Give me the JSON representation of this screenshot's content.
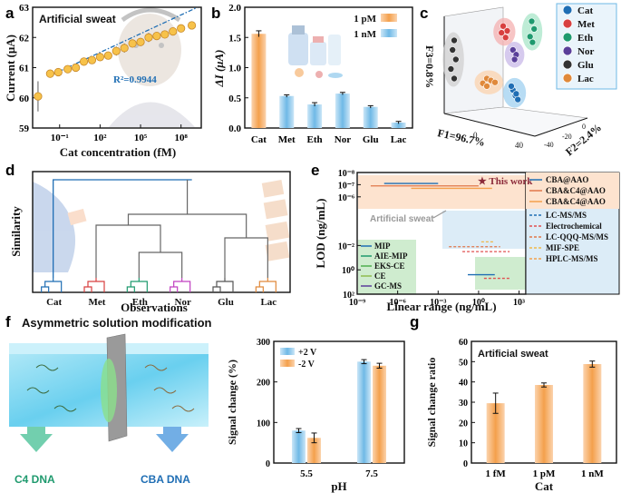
{
  "colors": {
    "orange": "#f4a04c",
    "orange_light": "#fbd3ad",
    "blue": "#6fb9e6",
    "blue_light": "#cbe6f7",
    "dark_blue": "#1f6eb4",
    "axis": "#111111",
    "annot_red": "#8b2a3a",
    "green_box": "#cfeccf",
    "orange_box": "#fde3cf",
    "blue_box": "#dcecf7"
  },
  "panel_labels": [
    "a",
    "b",
    "c",
    "d",
    "e",
    "f",
    "g"
  ],
  "chart_data": [
    {
      "id": "a",
      "type": "scatter",
      "title": "Artificial sweat",
      "xlabel": "Cat concentration (fM)",
      "ylabel": "Current (μA)",
      "x_log": true,
      "xlim_log10": [
        -3,
        9.5
      ],
      "ylim": [
        59,
        63
      ],
      "x_ticks": [
        {
          "e": -1,
          "label": "10⁻¹"
        },
        {
          "e": 2,
          "label": "10²"
        },
        {
          "e": 5,
          "label": "10⁵"
        },
        {
          "e": 8,
          "label": "10⁸"
        }
      ],
      "y_ticks": [
        59,
        60,
        61,
        62,
        63
      ],
      "annotation": "R²=0.9944",
      "fit": {
        "slope": 0.207,
        "intercept": 61.09
      },
      "points_log10x": [
        -2.6,
        -1.7,
        -1.1,
        -0.4,
        0.2,
        0.8,
        1.4,
        2.0,
        2.6,
        3.2,
        3.8,
        4.4,
        5.0,
        5.6,
        6.2,
        6.8,
        7.4,
        8.0,
        8.8
      ],
      "points_y": [
        60.05,
        60.8,
        60.85,
        60.95,
        61.0,
        61.2,
        61.25,
        61.35,
        61.4,
        61.55,
        61.65,
        61.8,
        61.85,
        62.0,
        62.05,
        62.1,
        62.2,
        62.3,
        62.4
      ],
      "errors": [
        0.5,
        0.12,
        0.08,
        0.1,
        0.1,
        0.12,
        0.1,
        0.1,
        0.12,
        0.15,
        0.15,
        0.12,
        0.12,
        0.15,
        0.1,
        0.1,
        0.1,
        0.1,
        0.08
      ]
    },
    {
      "id": "b",
      "type": "bar",
      "xlabel": "",
      "ylabel": "ΔI (μA)",
      "ylim": [
        0,
        2.0
      ],
      "y_ticks": [
        0.0,
        0.5,
        1.0,
        1.5,
        2.0
      ],
      "y_tick_labels": [
        "0.0",
        "0.5",
        "1.0",
        "1.5",
        "2.0"
      ],
      "categories": [
        "Cat",
        "Met",
        "Eth",
        "Nor",
        "Glu",
        "Lac"
      ],
      "values": [
        1.56,
        0.53,
        0.39,
        0.57,
        0.35,
        0.09
      ],
      "errors": [
        0.05,
        0.02,
        0.03,
        0.02,
        0.02,
        0.02
      ],
      "legend": [
        {
          "name": "1 pM"
        },
        {
          "name": "1 nM"
        }
      ]
    },
    {
      "id": "c",
      "type": "scatter",
      "xlabel": "F1=96.7%",
      "ylabel": "F3=0.8%",
      "zlabel": "F2=2.4%",
      "x_ticks": [
        "0",
        "40"
      ],
      "z_ticks": [
        "-40",
        "-20",
        "0"
      ],
      "legend": [
        {
          "name": "Cat"
        },
        {
          "name": "Met"
        },
        {
          "name": "Eth"
        },
        {
          "name": "Nor"
        },
        {
          "name": "Glu"
        },
        {
          "name": "Lac"
        }
      ],
      "clusters": [
        {
          "name": "Cat",
          "points": [
            [
              0.15,
              0.12,
              0.0
            ],
            [
              0.12,
              0.18,
              0.0
            ],
            [
              0.18,
              0.08,
              0.0
            ],
            [
              0.1,
              0.22,
              0.0
            ],
            [
              0.16,
              0.14,
              0.0
            ]
          ]
        },
        {
          "name": "Met",
          "points": [
            [
              0.0,
              0.85,
              0.0
            ],
            [
              0.05,
              0.8,
              0.0
            ],
            [
              -0.02,
              0.78,
              0.0
            ],
            [
              0.03,
              0.73,
              0.0
            ]
          ]
        },
        {
          "name": "Eth",
          "points": [
            [
              0.35,
              0.9,
              0.0
            ],
            [
              0.38,
              0.82,
              0.0
            ],
            [
              0.33,
              0.74,
              0.0
            ],
            [
              0.36,
              0.68,
              0.0
            ]
          ]
        },
        {
          "name": "Nor",
          "points": [
            [
              0.12,
              0.6,
              0.0
            ],
            [
              0.16,
              0.55,
              0.0
            ],
            [
              0.14,
              0.5,
              0.0
            ]
          ]
        },
        {
          "name": "Glu",
          "points": [
            [
              -0.6,
              0.7,
              0.0
            ],
            [
              -0.62,
              0.6,
              0.0
            ],
            [
              -0.58,
              0.5,
              0.0
            ],
            [
              -0.64,
              0.4,
              0.0
            ],
            [
              -0.6,
              0.3,
              0.0
            ]
          ]
        },
        {
          "name": "Lac",
          "points": [
            [
              -0.2,
              0.3,
              0.0
            ],
            [
              -0.15,
              0.28,
              0.0
            ],
            [
              -0.25,
              0.25,
              0.0
            ],
            [
              -0.1,
              0.26,
              0.0
            ],
            [
              -0.2,
              0.22,
              0.0
            ]
          ]
        }
      ]
    },
    {
      "id": "d",
      "type": "dendrogram",
      "xlabel": "Observations",
      "ylabel": "Similarity",
      "categories": [
        "Cat",
        "Met",
        "Eth",
        "Nor",
        "Glu",
        "Lac"
      ]
    },
    {
      "id": "e",
      "type": "range",
      "xlabel": "Linear range (ng/mL)",
      "ylabel": "LOD (ng/mL)",
      "x_log": true,
      "y_log": true,
      "xlim_log10": [
        -9,
        3.5
      ],
      "ylim_log10": [
        -8,
        2
      ],
      "x_ticks": [
        {
          "e": -9,
          "label": "10⁻⁹"
        },
        {
          "e": -6,
          "label": "10⁻⁶"
        },
        {
          "e": -3,
          "label": "10⁻³"
        },
        {
          "e": 0,
          "label": "10⁰"
        },
        {
          "e": 3,
          "label": "10³"
        }
      ],
      "y_ticks": [
        {
          "e": -8,
          "label": "10⁻⁸"
        },
        {
          "e": -7,
          "label": "10⁻⁷"
        },
        {
          "e": -6,
          "label": "10⁻⁶"
        },
        {
          "e": -2,
          "label": "10⁻²"
        },
        {
          "e": 0,
          "label": "10⁰"
        },
        {
          "e": 2,
          "label": "10²"
        }
      ],
      "this_work_label": "★ This work",
      "artificial_sweat_label": "Artificial sweat",
      "segments": [
        {
          "name": "CBA@AAO",
          "x0": -7,
          "x1": -3,
          "y": -7.1,
          "color": "#1f6eb4",
          "dash": false
        },
        {
          "name": "CBA&C4@AAO",
          "x0": -8,
          "x1": 0,
          "y": -6.9,
          "color": "#e0774a",
          "dash": false
        },
        {
          "name": "CBA&C4@AAO",
          "x0": -5,
          "x1": 1,
          "y": -6.7,
          "color": "#f4a04c",
          "dash": false
        },
        {
          "name": "MIP",
          "x0": -0.8,
          "x1": 1.2,
          "y": 0.4,
          "color": "#1f6eb4",
          "dash": false
        },
        {
          "name": "MIP",
          "x0": 0.4,
          "x1": 2.4,
          "y": 0.7,
          "color": "#e05050",
          "dash": true
        },
        {
          "name": "Electrochemical",
          "x0": -1.2,
          "x1": 2.3,
          "y": -1.5,
          "color": "#e05050",
          "dash": true
        },
        {
          "name": "LC-QQQ-MS/MS",
          "x0": -2.2,
          "x1": 1.6,
          "y": -1.9,
          "color": "#e0774a",
          "dash": true
        },
        {
          "name": "MIF-SPE",
          "x0": 0.2,
          "x1": 1.2,
          "y": -2.3,
          "color": "#f0b84a",
          "dash": true
        }
      ],
      "legend_right": [
        "CBA@AAO",
        "CBA&C4@AAO",
        "CBA&C4@AAO",
        "LC-MS/MS",
        "Electrochemical",
        "LC-QQQ-MS/MS",
        "MIF-SPE",
        "HPLC-MS/MS"
      ],
      "legend_left": [
        "MIP",
        "AIE-MIP",
        "EKS-CE",
        "CE",
        "GC-MS"
      ]
    },
    {
      "id": "f",
      "type": "bar",
      "title": "Asymmetric solution modification",
      "xlabel": "pH",
      "ylabel": "Signal change (%)",
      "ylim": [
        0,
        300
      ],
      "y_ticks": [
        0,
        100,
        200,
        300
      ],
      "categories": [
        "5.5",
        "7.5"
      ],
      "series": [
        {
          "name": "+2 V",
          "values": [
            80,
            250
          ],
          "errors": [
            5,
            5
          ]
        },
        {
          "name": "-2 V",
          "values": [
            62,
            240
          ],
          "errors": [
            12,
            6
          ]
        }
      ],
      "labels": [
        "C4 DNA",
        "CBA DNA"
      ]
    },
    {
      "id": "g",
      "type": "bar",
      "title": "Artificial sweat",
      "xlabel": "Cat",
      "ylabel": "Signal change ratio",
      "ylim": [
        0,
        60
      ],
      "y_ticks": [
        0,
        10,
        20,
        30,
        40,
        50,
        60
      ],
      "categories": [
        "1 fM",
        "1 pM",
        "1 nM"
      ],
      "values": [
        29.5,
        38.5,
        48.8
      ],
      "errors": [
        5.0,
        1.0,
        1.5
      ]
    }
  ]
}
